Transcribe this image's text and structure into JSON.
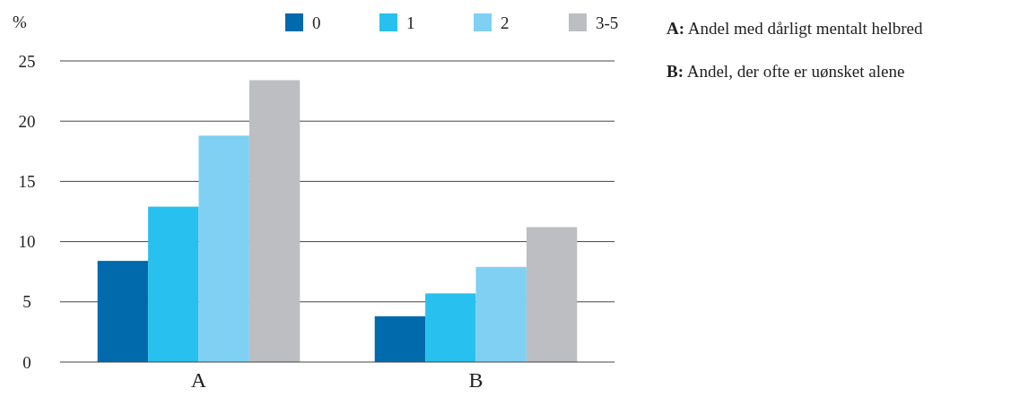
{
  "chart_data": {
    "type": "bar",
    "ylabel": "%",
    "categories": [
      "A",
      "B"
    ],
    "series": [
      {
        "name": "0",
        "color": "#006aad",
        "values": [
          8.4,
          3.8
        ]
      },
      {
        "name": "1",
        "color": "#27c0ef",
        "values": [
          12.9,
          5.7
        ]
      },
      {
        "name": "2",
        "color": "#7fd0f3",
        "values": [
          18.8,
          7.9
        ]
      },
      {
        "name": "3-5",
        "color": "#bdbec2",
        "values": [
          23.4,
          11.2
        ]
      }
    ],
    "ylim": [
      0,
      25
    ],
    "yticks": [
      0,
      5,
      10,
      15,
      20,
      25
    ],
    "grid": "y",
    "legend": "top",
    "annotations": [
      "A: Andel med dårligt mentalt helbred",
      "B: Andel, der ofte er uønsket alene"
    ]
  }
}
